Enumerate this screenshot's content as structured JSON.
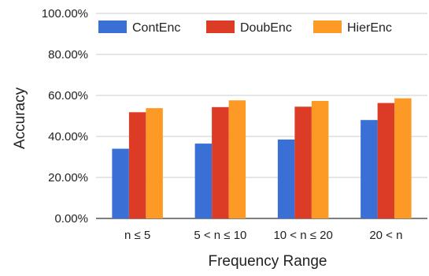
{
  "chart_data": {
    "type": "bar",
    "title": "",
    "xlabel": "Frequency Range",
    "ylabel": "Accuracy",
    "categories": [
      "n ≤ 5",
      "5 < n ≤ 10",
      "10 < n ≤ 20",
      "20 < n"
    ],
    "series": [
      {
        "name": "ContEnc",
        "color": "#3A6FD6",
        "values": [
          34.0,
          36.5,
          38.5,
          48.0
        ]
      },
      {
        "name": "DoubEnc",
        "color": "#DC3B25",
        "values": [
          51.8,
          54.3,
          54.5,
          56.3
        ]
      },
      {
        "name": "HierEnc",
        "color": "#FD9A26",
        "values": [
          53.8,
          57.6,
          57.3,
          58.6
        ]
      }
    ],
    "ylim": [
      0,
      100
    ],
    "yticks": [
      0,
      20,
      40,
      60,
      80,
      100
    ],
    "ytick_labels": [
      "0.00%",
      "20.00%",
      "40.00%",
      "60.00%",
      "80.00%",
      "100.00%"
    ],
    "grid": true,
    "legend_position": "top"
  }
}
